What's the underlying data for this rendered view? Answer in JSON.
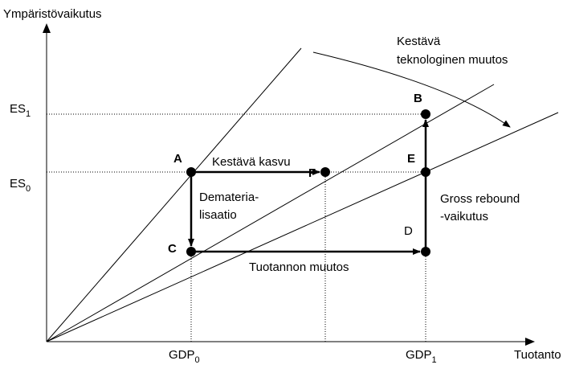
{
  "y_axis_label": "Ympäristövaikutus",
  "x_axis_label": "Tuotanto",
  "y_levels": [
    {
      "base": "ES",
      "sub": "1"
    },
    {
      "base": "ES",
      "sub": "0"
    }
  ],
  "x_levels": [
    {
      "base": "GDP",
      "sub": "0"
    },
    {
      "base": "GDP",
      "sub": "1"
    }
  ],
  "points": [
    "A",
    "F",
    "B",
    "E",
    "C",
    "D"
  ],
  "arrows": {
    "a_f": "Kestävä kasvu",
    "a_c": [
      "Demateria-",
      "lisaatio"
    ],
    "c_d": "Tuotannon muutos",
    "d_b": [
      "Gross rebound",
      "-vaikutus"
    ],
    "curve": [
      "Kestävä",
      "teknologinen muutos"
    ]
  }
}
